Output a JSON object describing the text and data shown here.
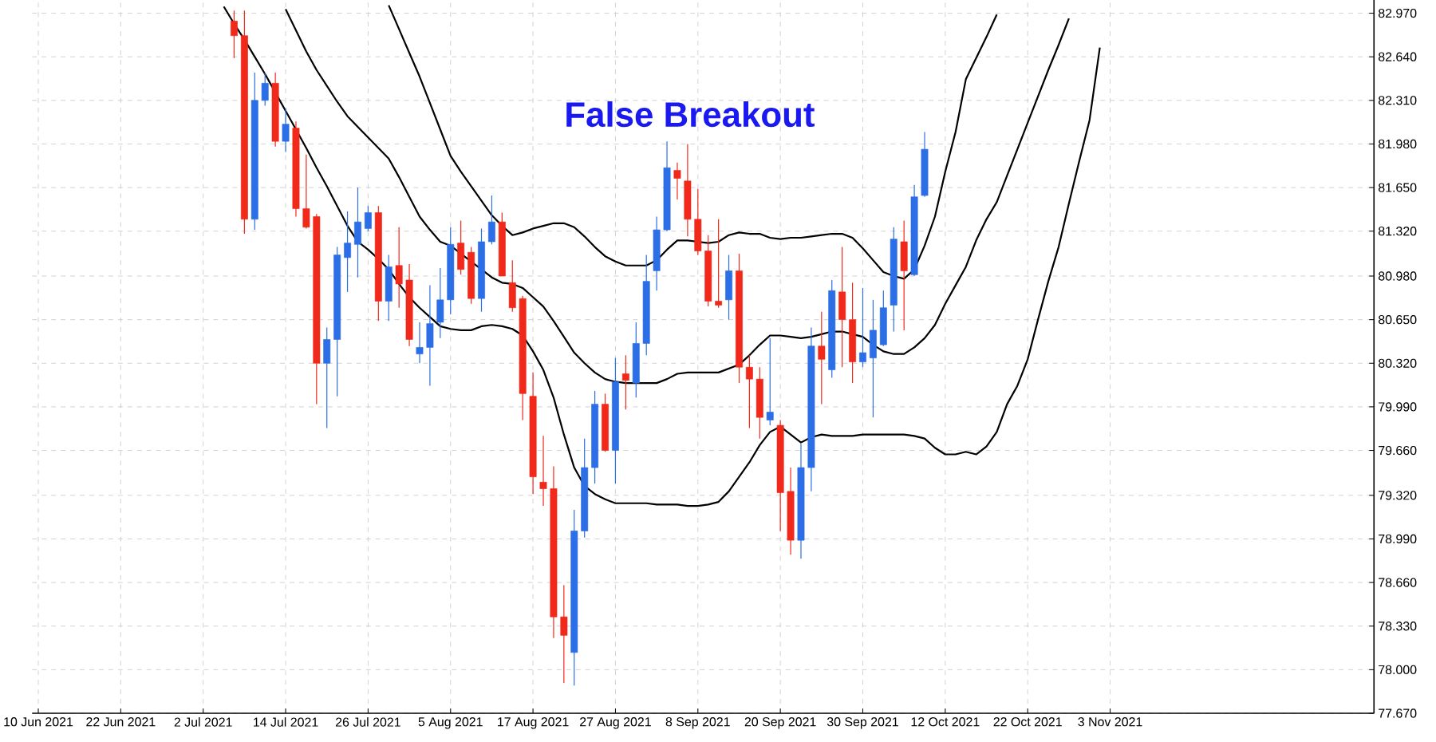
{
  "chart_data": {
    "type": "candlestick",
    "title": "False Breakout",
    "categories": [
      "10 Jun 2021",
      null,
      null,
      null,
      null,
      null,
      null,
      null,
      "22 Jun 2021",
      null,
      null,
      null,
      null,
      null,
      null,
      null,
      "2 Jul 2021",
      null,
      null,
      null,
      null,
      null,
      null,
      null,
      "14 Jul 2021",
      null,
      null,
      null,
      null,
      null,
      null,
      null,
      "26 Jul 2021",
      null,
      null,
      null,
      null,
      null,
      null,
      null,
      "5 Aug 2021",
      null,
      null,
      null,
      null,
      null,
      null,
      null,
      "17 Aug 2021",
      null,
      null,
      null,
      null,
      null,
      null,
      null,
      "27 Aug 2021",
      null,
      null,
      null,
      null,
      null,
      null,
      null,
      "8 Sep 2021",
      null,
      null,
      null,
      null,
      null,
      null,
      null,
      "20 Sep 2021",
      null,
      null,
      null,
      null,
      null,
      null,
      null,
      "30 Sep 2021",
      null,
      null,
      null,
      null,
      null,
      null,
      null,
      "12 Oct 2021",
      null,
      null,
      null,
      null,
      null,
      null,
      null,
      "22 Oct 2021",
      null,
      null,
      null,
      null,
      null,
      null,
      null,
      "3 Nov 2021",
      null,
      null,
      null,
      null,
      null,
      null,
      null,
      null,
      null,
      null,
      null,
      null,
      null,
      null,
      null,
      null,
      null,
      null,
      null,
      null,
      null,
      null,
      null,
      null,
      null
    ],
    "ohlc": [
      null,
      null,
      null,
      null,
      null,
      null,
      null,
      null,
      null,
      null,
      null,
      null,
      null,
      null,
      null,
      null,
      null,
      null,
      null,
      [
        82.91,
        82.99,
        82.63,
        82.8
      ],
      [
        82.8,
        82.99,
        81.3,
        81.41
      ],
      [
        81.41,
        82.52,
        81.33,
        82.31
      ],
      [
        82.31,
        82.52,
        82.27,
        82.44
      ],
      [
        82.44,
        82.52,
        81.96,
        82.0
      ],
      [
        82.0,
        82.25,
        81.92,
        82.13
      ],
      [
        82.1,
        82.15,
        81.43,
        81.49
      ],
      [
        81.49,
        81.9,
        81.34,
        81.35
      ],
      [
        81.43,
        81.45,
        80.01,
        80.32
      ],
      [
        80.32,
        80.59,
        79.83,
        80.5
      ],
      [
        80.5,
        81.2,
        80.07,
        81.14
      ],
      [
        81.12,
        81.47,
        80.86,
        81.23
      ],
      [
        81.22,
        81.65,
        80.97,
        81.39
      ],
      [
        81.34,
        81.51,
        81.32,
        81.46
      ],
      [
        81.46,
        81.51,
        80.64,
        80.79
      ],
      [
        80.79,
        81.14,
        80.64,
        81.05
      ],
      [
        81.06,
        81.35,
        80.74,
        80.92
      ],
      [
        80.95,
        81.07,
        80.45,
        80.5
      ],
      [
        80.39,
        80.63,
        80.32,
        80.44
      ],
      [
        80.44,
        80.91,
        80.15,
        80.62
      ],
      [
        80.63,
        81.04,
        80.51,
        80.8
      ],
      [
        80.8,
        81.35,
        80.69,
        81.22
      ],
      [
        81.23,
        81.4,
        80.99,
        81.03
      ],
      [
        81.16,
        81.2,
        80.77,
        80.81
      ],
      [
        80.81,
        81.34,
        80.71,
        81.24
      ],
      [
        81.24,
        81.59,
        81.22,
        81.39
      ],
      [
        81.39,
        81.46,
        80.98,
        80.98
      ],
      [
        80.93,
        81.1,
        80.71,
        80.74
      ],
      [
        80.81,
        80.83,
        79.89,
        80.09
      ],
      [
        80.07,
        80.25,
        79.33,
        79.46
      ],
      [
        79.42,
        79.77,
        79.24,
        79.37
      ],
      [
        79.37,
        79.54,
        78.24,
        78.4
      ],
      [
        78.4,
        78.64,
        77.9,
        78.26
      ],
      [
        78.13,
        79.21,
        77.88,
        79.05
      ],
      [
        79.05,
        79.75,
        79.0,
        79.53
      ],
      [
        79.53,
        80.11,
        79.41,
        80.01
      ],
      [
        80.01,
        80.09,
        79.65,
        79.66
      ],
      [
        79.66,
        80.36,
        79.41,
        80.18
      ],
      [
        80.24,
        80.38,
        79.97,
        80.19
      ],
      [
        80.17,
        80.63,
        80.06,
        80.47
      ],
      [
        80.47,
        81.14,
        80.38,
        80.94
      ],
      [
        81.02,
        81.43,
        80.87,
        81.33
      ],
      [
        81.33,
        82.0,
        81.32,
        81.8
      ],
      [
        81.78,
        81.84,
        81.56,
        81.72
      ],
      [
        81.7,
        81.98,
        81.28,
        81.41
      ],
      [
        81.41,
        81.64,
        81.14,
        81.17
      ],
      [
        81.17,
        81.29,
        80.75,
        80.79
      ],
      [
        80.79,
        81.41,
        80.74,
        80.76
      ],
      [
        80.8,
        81.14,
        80.65,
        81.02
      ],
      [
        81.02,
        81.15,
        80.17,
        80.29
      ],
      [
        80.29,
        80.38,
        79.83,
        80.2
      ],
      [
        80.2,
        80.29,
        79.75,
        79.91
      ],
      [
        79.89,
        80.51,
        79.85,
        79.95
      ],
      [
        79.85,
        79.89,
        79.05,
        79.34
      ],
      [
        79.35,
        79.53,
        78.87,
        78.98
      ],
      [
        78.98,
        79.71,
        78.84,
        79.53
      ],
      [
        79.53,
        80.59,
        79.35,
        80.45
      ],
      [
        80.45,
        80.71,
        80.01,
        80.35
      ],
      [
        80.27,
        80.95,
        80.21,
        80.87
      ],
      [
        80.86,
        81.2,
        80.29,
        80.65
      ],
      [
        80.65,
        80.93,
        80.17,
        80.33
      ],
      [
        80.33,
        80.89,
        80.29,
        80.4
      ],
      [
        80.36,
        80.8,
        79.91,
        80.57
      ],
      [
        80.46,
        80.87,
        80.45,
        80.74
      ],
      [
        80.76,
        81.35,
        80.56,
        81.26
      ],
      [
        81.24,
        81.4,
        80.57,
        81.02
      ],
      [
        80.99,
        81.67,
        80.98,
        81.58
      ],
      [
        81.59,
        82.07,
        81.58,
        81.94
      ],
      null,
      null,
      null,
      null,
      null,
      null,
      null,
      null,
      null,
      null,
      null,
      null,
      null,
      null,
      null,
      null,
      null,
      null,
      null,
      null,
      null,
      null,
      null,
      null,
      null,
      null,
      null,
      null,
      null,
      null,
      null,
      null,
      null,
      null,
      null,
      null,
      null,
      null,
      null,
      null,
      null,
      null,
      null
    ],
    "colors": [
      null,
      null,
      null,
      null,
      null,
      null,
      null,
      null,
      null,
      null,
      null,
      null,
      null,
      null,
      null,
      null,
      null,
      null,
      null,
      "#f0291a",
      "#f0291a",
      "#2b6ee6",
      "#2b6ee6",
      "#f0291a",
      "#2b6ee6",
      "#f0291a",
      "#f0291a",
      "#f0291a",
      "#2b6ee6",
      "#2b6ee6",
      "#2b6ee6",
      "#2b6ee6",
      "#2b6ee6",
      "#f0291a",
      "#2b6ee6",
      "#f0291a",
      "#f0291a",
      "#2b6ee6",
      "#2b6ee6",
      "#2b6ee6",
      "#2b6ee6",
      "#f0291a",
      "#f0291a",
      "#2b6ee6",
      "#2b6ee6",
      "#f0291a",
      "#f0291a",
      "#f0291a",
      "#f0291a",
      "#f0291a",
      "#f0291a",
      "#f0291a",
      "#2b6ee6",
      "#2b6ee6",
      "#2b6ee6",
      "#f0291a",
      "#2b6ee6",
      "#f0291a",
      "#2b6ee6",
      "#2b6ee6",
      "#2b6ee6",
      "#2b6ee6",
      "#f0291a",
      "#f0291a",
      "#f0291a",
      "#f0291a",
      "#f0291a",
      "#2b6ee6",
      "#f0291a",
      "#f0291a",
      "#f0291a",
      "#2b6ee6",
      "#f0291a",
      "#f0291a",
      "#2b6ee6",
      "#2b6ee6",
      "#f0291a",
      "#2b6ee6",
      "#f0291a",
      "#f0291a",
      "#2b6ee6",
      "#2b6ee6",
      "#2b6ee6",
      "#2b6ee6",
      "#f0291a",
      "#2b6ee6",
      "#2b6ee6",
      null,
      null,
      null,
      null,
      null,
      null,
      null,
      null,
      null,
      null,
      null,
      null,
      null,
      null,
      null,
      null,
      null,
      null,
      null,
      null,
      null,
      null,
      null,
      null,
      null,
      null,
      null,
      null,
      null,
      null,
      null,
      null,
      null,
      null,
      null,
      null,
      null,
      null,
      null,
      null,
      null,
      null,
      null
    ],
    "series": [
      {
        "type": "line",
        "color": "#000000",
        "values": [
          null,
          null,
          null,
          null,
          null,
          null,
          null,
          null,
          null,
          null,
          null,
          null,
          null,
          null,
          null,
          null,
          null,
          null,
          null,
          null,
          null,
          null,
          null,
          null,
          null,
          null,
          null,
          null,
          null,
          null,
          null,
          null,
          null,
          null,
          83.03,
          82.85,
          82.67,
          82.49,
          82.29,
          82.09,
          81.89,
          81.77,
          81.66,
          81.55,
          81.44,
          81.36,
          81.29,
          81.31,
          81.34,
          81.36,
          81.38,
          81.38,
          81.35,
          81.28,
          81.2,
          81.13,
          81.09,
          81.06,
          81.06,
          81.06,
          81.1,
          81.18,
          81.25,
          81.25,
          81.24,
          81.23,
          81.24,
          81.29,
          81.31,
          81.3,
          81.3,
          81.27,
          81.26,
          81.27,
          81.27,
          81.28,
          81.29,
          81.3,
          81.3,
          81.27,
          81.19,
          81.1,
          81.01,
          80.98,
          80.96,
          81.03,
          81.21,
          81.43,
          81.77,
          82.07,
          82.47,
          82.63,
          82.79,
          82.96,
          null,
          null,
          null,
          null,
          null,
          null,
          null,
          null,
          null,
          null,
          null,
          null,
          null,
          null,
          null,
          null,
          null,
          null,
          null,
          null,
          null,
          null,
          null,
          null,
          null,
          null,
          null,
          null,
          null,
          null,
          null,
          null,
          null,
          null,
          null,
          null
        ]
      },
      {
        "type": "line",
        "color": "#000000",
        "values": [
          null,
          null,
          null,
          null,
          null,
          null,
          null,
          null,
          null,
          null,
          null,
          null,
          null,
          null,
          null,
          null,
          null,
          null,
          null,
          null,
          null,
          null,
          null,
          null,
          83.0,
          82.84,
          82.68,
          82.54,
          82.42,
          82.3,
          82.19,
          82.11,
          82.03,
          81.95,
          81.87,
          81.73,
          81.58,
          81.43,
          81.33,
          81.24,
          81.21,
          81.15,
          81.09,
          81.03,
          80.97,
          80.93,
          80.92,
          80.89,
          80.82,
          80.75,
          80.64,
          80.52,
          80.4,
          80.32,
          80.25,
          80.2,
          80.18,
          80.17,
          80.17,
          80.17,
          80.17,
          80.2,
          80.24,
          80.25,
          80.25,
          80.25,
          80.25,
          80.28,
          80.31,
          80.38,
          80.46,
          80.53,
          80.53,
          80.52,
          80.51,
          80.52,
          80.54,
          80.56,
          80.56,
          80.54,
          80.52,
          80.46,
          80.41,
          80.39,
          80.39,
          80.44,
          80.51,
          80.61,
          80.77,
          80.91,
          81.05,
          81.25,
          81.41,
          81.54,
          81.74,
          81.94,
          82.14,
          82.34,
          82.54,
          82.73,
          82.93,
          null,
          null,
          null,
          null,
          null,
          null,
          null,
          null,
          null,
          null,
          null,
          null,
          null,
          null,
          null,
          null,
          null,
          null,
          null,
          null,
          null,
          null,
          null,
          null,
          null,
          null,
          null,
          null,
          null
        ]
      },
      {
        "type": "line",
        "color": "#000000",
        "values": [
          null,
          null,
          null,
          null,
          null,
          null,
          null,
          null,
          null,
          null,
          null,
          null,
          null,
          null,
          null,
          null,
          null,
          null,
          83.02,
          82.89,
          82.77,
          82.64,
          82.51,
          82.37,
          82.23,
          82.09,
          81.95,
          81.8,
          81.66,
          81.51,
          81.36,
          81.24,
          81.18,
          81.11,
          81.03,
          80.92,
          80.82,
          80.74,
          80.67,
          80.6,
          80.58,
          80.57,
          80.57,
          80.6,
          80.61,
          80.6,
          80.58,
          80.53,
          80.41,
          80.27,
          80.06,
          79.78,
          79.53,
          79.39,
          79.33,
          79.29,
          79.26,
          79.26,
          79.26,
          79.26,
          79.25,
          79.25,
          79.25,
          79.24,
          79.24,
          79.25,
          79.27,
          79.35,
          79.46,
          79.57,
          79.7,
          79.8,
          79.84,
          79.78,
          79.72,
          79.76,
          79.78,
          79.77,
          79.77,
          79.77,
          79.78,
          79.78,
          79.78,
          79.78,
          79.78,
          79.77,
          79.75,
          79.68,
          79.63,
          79.63,
          79.65,
          79.63,
          79.69,
          79.8,
          80.01,
          80.15,
          80.35,
          80.65,
          80.94,
          81.2,
          81.53,
          81.85,
          82.16,
          82.71,
          null,
          null,
          null,
          null,
          null,
          null,
          null,
          null,
          null,
          null,
          null,
          null,
          null,
          null,
          null,
          null,
          null,
          null,
          null,
          null,
          null,
          null,
          null,
          null,
          null,
          null
        ]
      }
    ],
    "ylim": [
      77.67,
      83.07
    ],
    "yticks": [
      {
        "value": 77.67,
        "label": "77.670"
      },
      {
        "value": 78.0,
        "label": "78.000"
      },
      {
        "value": 78.33,
        "label": "78.330"
      },
      {
        "value": 78.66,
        "label": "78.660"
      },
      {
        "value": 78.99,
        "label": "78.990"
      },
      {
        "value": 79.32,
        "label": "79.320"
      },
      {
        "value": 79.66,
        "label": "79.660"
      },
      {
        "value": 79.99,
        "label": "79.990"
      },
      {
        "value": 80.32,
        "label": "80.320"
      },
      {
        "value": 80.65,
        "label": "80.650"
      },
      {
        "value": 80.98,
        "label": "80.980"
      },
      {
        "value": 81.32,
        "label": "81.320"
      },
      {
        "value": 81.65,
        "label": "81.650"
      },
      {
        "value": 81.98,
        "label": "81.980"
      },
      {
        "value": 82.31,
        "label": "82.310"
      },
      {
        "value": 82.64,
        "label": "82.640"
      },
      {
        "value": 82.97,
        "label": "82.970"
      }
    ],
    "grid": true
  }
}
